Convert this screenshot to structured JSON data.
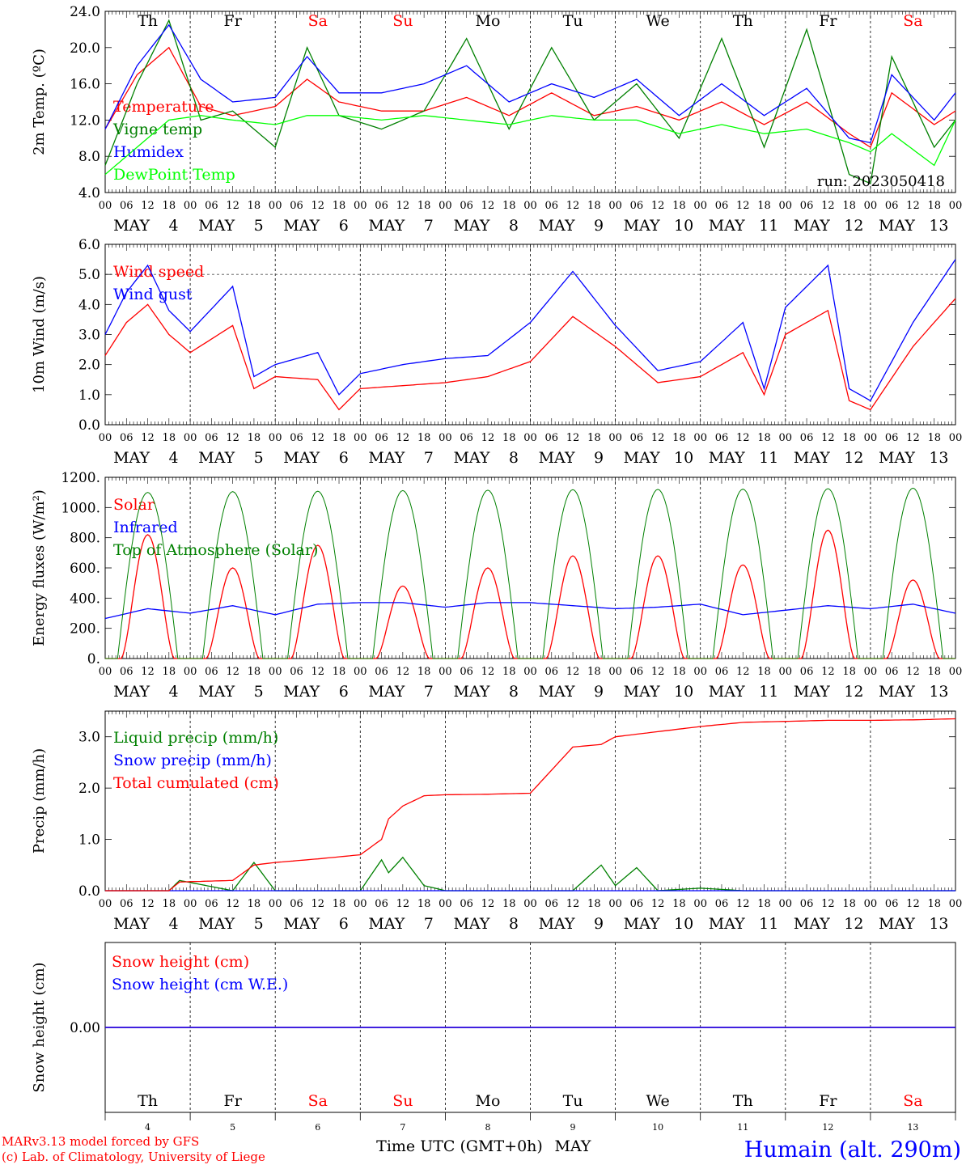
{
  "chart_data": [
    {
      "type": "line",
      "ylabel": "2m Temp. (ºC)",
      "ylim": [
        4,
        24
      ],
      "yticks": [
        "4.0",
        "8.0",
        "12.0",
        "16.0",
        "20.0",
        "24.0"
      ],
      "ytick_values": [
        4,
        8,
        12,
        16,
        20,
        24
      ],
      "ref_line": null,
      "annotation": "run: 2023050418",
      "x_hours": [
        0,
        9,
        18,
        27,
        36,
        48,
        57,
        66,
        78,
        90,
        102,
        114,
        126,
        138,
        150,
        162,
        174,
        186,
        198,
        210,
        216,
        222,
        234,
        240
      ],
      "series": [
        {
          "name": "Temperature",
          "color": "#ff0000",
          "values": [
            11.0,
            17.0,
            20.0,
            13.5,
            12.5,
            13.5,
            16.5,
            14.0,
            13.0,
            13.0,
            14.5,
            12.5,
            15.0,
            12.5,
            13.5,
            12.0,
            14.0,
            11.5,
            14.0,
            10.5,
            9.0,
            15.0,
            11.5,
            13.0
          ]
        },
        {
          "name": "Vigne temp",
          "color": "#008000",
          "values": [
            7.0,
            16.0,
            23.0,
            12.0,
            13.0,
            9.0,
            20.0,
            12.5,
            11.0,
            13.0,
            21.0,
            11.0,
            20.0,
            12.0,
            16.0,
            10.0,
            21.0,
            9.0,
            22.0,
            6.0,
            5.0,
            19.0,
            9.0,
            12.0
          ]
        },
        {
          "name": "Humidex",
          "color": "#0000ff",
          "values": [
            11.0,
            18.0,
            22.5,
            16.5,
            14.0,
            14.5,
            19.0,
            15.0,
            15.0,
            16.0,
            18.0,
            14.0,
            16.0,
            14.5,
            16.5,
            12.5,
            16.0,
            12.5,
            15.5,
            10.0,
            9.5,
            17.0,
            12.0,
            15.0
          ]
        },
        {
          "name": "DewPoint Temp",
          "color": "#00ff00",
          "values": [
            6.0,
            9.0,
            12.0,
            12.5,
            12.0,
            11.5,
            12.5,
            12.5,
            12.0,
            12.5,
            12.0,
            11.5,
            12.5,
            12.0,
            12.0,
            10.5,
            11.5,
            10.5,
            11.0,
            9.5,
            8.5,
            10.5,
            7.0,
            12.0
          ]
        }
      ]
    },
    {
      "type": "line",
      "ylabel": "10m Wind (m/s)",
      "ylim": [
        0,
        6
      ],
      "yticks": [
        "0.0",
        "1.0",
        "2.0",
        "3.0",
        "4.0",
        "5.0",
        "6.0"
      ],
      "ytick_values": [
        0,
        1,
        2,
        3,
        4,
        5,
        6
      ],
      "ref_line": 5.0,
      "annotation": "",
      "x_hours": [
        0,
        6,
        12,
        18,
        24,
        36,
        42,
        48,
        60,
        66,
        72,
        84,
        96,
        108,
        120,
        132,
        144,
        156,
        168,
        180,
        186,
        192,
        204,
        210,
        216,
        228,
        240
      ],
      "series": [
        {
          "name": "Wind speed",
          "color": "#ff0000",
          "values": [
            2.3,
            3.4,
            4.0,
            3.0,
            2.4,
            3.3,
            1.2,
            1.6,
            1.5,
            0.5,
            1.2,
            1.3,
            1.4,
            1.6,
            2.1,
            3.6,
            2.6,
            1.4,
            1.6,
            2.4,
            1.0,
            3.0,
            3.8,
            0.8,
            0.5,
            2.6,
            4.2
          ]
        },
        {
          "name": "Wind gust",
          "color": "#0000ff",
          "values": [
            3.0,
            4.4,
            5.3,
            3.8,
            3.1,
            4.6,
            1.6,
            2.0,
            2.4,
            1.0,
            1.7,
            2.0,
            2.2,
            2.3,
            3.4,
            5.1,
            3.3,
            1.8,
            2.1,
            3.4,
            1.2,
            3.9,
            5.3,
            1.2,
            0.8,
            3.4,
            5.5
          ]
        }
      ]
    },
    {
      "type": "line",
      "ylabel": "Energy fluxes (W/m²)",
      "ylim": [
        0,
        1200
      ],
      "yticks": [
        "0.",
        "200.",
        "400.",
        "600.",
        "800.",
        "1000.",
        "1200."
      ],
      "ytick_values": [
        0,
        200,
        400,
        600,
        800,
        1000,
        1200
      ],
      "ref_line": null,
      "annotation": "",
      "x_hours": [
        0,
        12,
        24,
        36,
        48,
        60,
        72,
        84,
        96,
        108,
        120,
        132,
        144,
        156,
        168,
        180,
        192,
        204,
        216,
        228,
        240
      ],
      "series": [
        {
          "name": "Solar",
          "color": "#ff0000",
          "peaks": [
            820,
            600,
            750,
            480,
            600,
            680,
            680,
            620,
            850,
            520
          ]
        },
        {
          "name": "Infrared",
          "color": "#0000ff",
          "values": [
            265,
            330,
            300,
            350,
            290,
            360,
            370,
            370,
            340,
            370,
            370,
            350,
            330,
            340,
            360,
            290,
            320,
            350,
            330,
            360,
            300
          ]
        },
        {
          "name": "Top of Atmosphere (Solar)",
          "color": "#008000",
          "peak_values": [
            1100,
            1105,
            1108,
            1112,
            1115,
            1118,
            1120,
            1122,
            1125,
            1128
          ]
        }
      ]
    },
    {
      "type": "line",
      "ylabel": "Precip (mm/h)",
      "ylim": [
        0,
        3.5
      ],
      "yticks": [
        "0.0",
        "1.0",
        "2.0",
        "3.0"
      ],
      "ytick_values": [
        0,
        1,
        2,
        3
      ],
      "ref_line": null,
      "annotation": "",
      "x_hours": [
        0,
        18,
        21,
        36,
        42,
        48,
        60,
        72,
        78,
        80,
        84,
        90,
        96,
        108,
        120,
        132,
        140,
        144,
        150,
        156,
        168,
        180,
        192,
        204,
        216,
        228,
        240
      ],
      "series": [
        {
          "name": "Liquid precip (mm/h)",
          "color": "#008000",
          "values": [
            0,
            0.0,
            0.2,
            0.0,
            0.55,
            0.0,
            0.0,
            0.0,
            0.6,
            0.35,
            0.65,
            0.1,
            0.0,
            0.0,
            0.0,
            0.0,
            0.5,
            0.1,
            0.45,
            0.0,
            0.05,
            0.0,
            0.0,
            0.0,
            0.0,
            0.0,
            0.0
          ]
        },
        {
          "name": "Snow precip (mm/h)",
          "color": "#0000ff",
          "values": [
            0,
            0,
            0,
            0,
            0,
            0,
            0,
            0,
            0,
            0,
            0,
            0,
            0,
            0,
            0,
            0,
            0,
            0,
            0,
            0,
            0,
            0,
            0,
            0,
            0,
            0,
            0
          ]
        },
        {
          "name": "Total cumulated (cm)",
          "color": "#ff0000",
          "values": [
            0,
            0.0,
            0.17,
            0.2,
            0.5,
            0.55,
            0.62,
            0.7,
            1.0,
            1.4,
            1.65,
            1.85,
            1.87,
            1.88,
            1.9,
            2.8,
            2.85,
            3.0,
            3.05,
            3.1,
            3.2,
            3.28,
            3.3,
            3.32,
            3.32,
            3.33,
            3.35
          ]
        }
      ]
    },
    {
      "type": "line",
      "ylabel": "Snow height (cm)",
      "ylim": [
        -1,
        1
      ],
      "yticks": [
        "0.00"
      ],
      "ytick_values": [
        0
      ],
      "ref_line": null,
      "annotation": "",
      "x_hours": [
        0,
        240
      ],
      "series": [
        {
          "name": "Snow height (cm)",
          "color": "#ff0000",
          "values": [
            0,
            0
          ]
        },
        {
          "name": "Snow height (cm W.E.)",
          "color": "#0000ff",
          "values": [
            0,
            0
          ]
        }
      ]
    }
  ],
  "x_axis": {
    "hour_ticks": [
      "00",
      "06",
      "12",
      "18"
    ],
    "final_tick": "00",
    "month": "MAY",
    "dates": [
      "4",
      "5",
      "6",
      "7",
      "8",
      "9",
      "10",
      "11",
      "12",
      "13"
    ],
    "weekdays": [
      "Th",
      "Fr",
      "Sa",
      "Su",
      "Mo",
      "Tu",
      "We",
      "Th",
      "Fr",
      "Sa"
    ],
    "weekday_colors": [
      "#000000",
      "#000000",
      "#ff0000",
      "#ff0000",
      "#000000",
      "#000000",
      "#000000",
      "#000000",
      "#000000",
      "#ff0000"
    ],
    "xlabel": "Time UTC (GMT+0h)",
    "xlabel_month": "MAY"
  },
  "footer": {
    "credit_line1": "MARv3.13 model forced by GFS",
    "credit_line2": "(c) Lab. of Climatology, University of Liege",
    "station": "Humain (alt. 290m)",
    "credit_color": "#ff0000",
    "station_color": "#0000ff"
  }
}
